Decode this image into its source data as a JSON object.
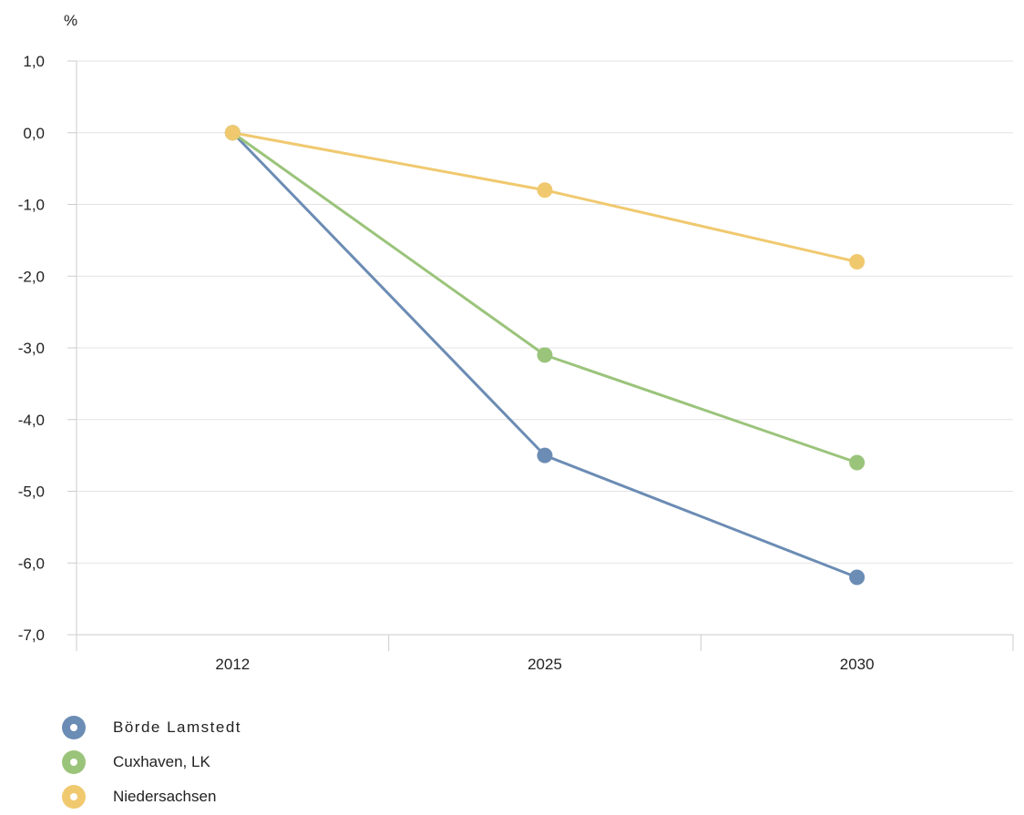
{
  "chart_data": {
    "type": "line",
    "ylabel": "%",
    "categories": [
      "2012",
      "2025",
      "2030"
    ],
    "yticks": [
      "1,0",
      "0,0",
      "-1,0",
      "-2,0",
      "-3,0",
      "-4,0",
      "-5,0",
      "-6,0",
      "-7,0"
    ],
    "ylim": [
      -7,
      1
    ],
    "grid": true,
    "legend_position": "bottom-left",
    "series": [
      {
        "name": "Börde Lamstedt",
        "values": [
          0.0,
          -4.5,
          -6.2
        ],
        "color": "#6b8cb4"
      },
      {
        "name": "Cuxhaven, LK",
        "values": [
          0.0,
          -3.1,
          -4.6
        ],
        "color": "#9bc47b"
      },
      {
        "name": "Niedersachsen",
        "values": [
          0.0,
          -0.8,
          -1.8
        ],
        "color": "#f0c96f"
      }
    ]
  }
}
